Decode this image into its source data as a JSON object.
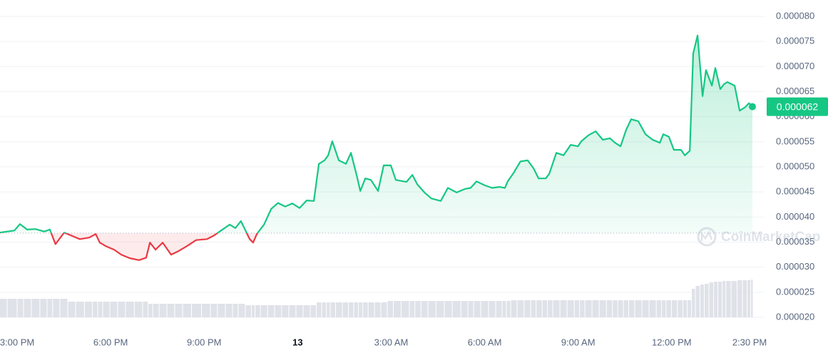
{
  "chart_data": {
    "type": "line",
    "watermark": "CoinMarketCap",
    "xlim": [
      14.45,
      38.59
    ],
    "xticks": [
      {
        "value": 15,
        "label": "3:00 PM"
      },
      {
        "value": 18,
        "label": "6:00 PM"
      },
      {
        "value": 21,
        "label": "9:00 PM"
      },
      {
        "value": 24,
        "label": "13"
      },
      {
        "value": 27,
        "label": "3:00 AM"
      },
      {
        "value": 30,
        "label": "6:00 AM"
      },
      {
        "value": 33,
        "label": "9:00 AM"
      },
      {
        "value": 36,
        "label": "12:00 PM"
      },
      {
        "value": 38.5,
        "label": "2:30 PM"
      }
    ],
    "ylim": [
      2e-05,
      8e-05
    ],
    "yticks": [
      {
        "value": 2e-05,
        "label": "0.000020"
      },
      {
        "value": 2.5e-05,
        "label": "0.000025"
      },
      {
        "value": 3e-05,
        "label": "0.000030"
      },
      {
        "value": 3.5e-05,
        "label": "0.000035"
      },
      {
        "value": 4e-05,
        "label": "0.000040"
      },
      {
        "value": 4.5e-05,
        "label": "0.000045"
      },
      {
        "value": 5e-05,
        "label": "0.000050"
      },
      {
        "value": 5.5e-05,
        "label": "0.000055"
      },
      {
        "value": 6e-05,
        "label": "0.000060"
      },
      {
        "value": 6.5e-05,
        "label": "0.000065"
      },
      {
        "value": 7e-05,
        "label": "0.000070"
      },
      {
        "value": 7.5e-05,
        "label": "0.000075"
      },
      {
        "value": 8e-05,
        "label": "0.000080"
      }
    ],
    "grid": true,
    "baseline": 3.68e-05,
    "up_color": "#16c784",
    "down_color": "#ea3943",
    "last_price": {
      "value": 6.2e-05,
      "label": "0.000062"
    },
    "x": [
      14.45,
      14.91,
      15.09,
      15.32,
      15.59,
      15.87,
      16.05,
      16.23,
      16.51,
      16.74,
      17.01,
      17.31,
      17.52,
      17.65,
      17.84,
      18.11,
      18.34,
      18.61,
      18.91,
      19.14,
      19.26,
      19.44,
      19.67,
      19.94,
      20.17,
      20.45,
      20.74,
      21.09,
      21.31,
      21.54,
      21.82,
      22.0,
      22.18,
      22.46,
      22.57,
      22.69,
      22.92,
      23.15,
      23.37,
      23.6,
      23.83,
      24.06,
      24.29,
      24.52,
      24.68,
      24.86,
      24.98,
      25.11,
      25.32,
      25.55,
      25.71,
      25.89,
      26.01,
      26.17,
      26.35,
      26.58,
      26.76,
      26.99,
      27.15,
      27.49,
      27.68,
      27.84,
      28.07,
      28.29,
      28.59,
      28.82,
      29.1,
      29.37,
      29.55,
      29.74,
      30.01,
      30.24,
      30.47,
      30.65,
      30.74,
      30.93,
      31.15,
      31.38,
      31.57,
      31.73,
      31.96,
      32.07,
      32.3,
      32.53,
      32.76,
      32.99,
      33.1,
      33.33,
      33.56,
      33.79,
      34.02,
      34.18,
      34.36,
      34.54,
      34.7,
      34.93,
      35.16,
      35.39,
      35.62,
      35.73,
      35.91,
      36.07,
      36.3,
      36.42,
      36.58,
      36.69,
      36.83,
      36.99,
      37.1,
      37.29,
      37.4,
      37.56,
      37.68,
      37.79,
      38.02,
      38.18,
      38.36,
      38.48,
      38.59
    ],
    "values": [
      3.69e-05,
      3.73e-05,
      3.86e-05,
      3.75e-05,
      3.76e-05,
      3.71e-05,
      3.75e-05,
      3.46e-05,
      3.69e-05,
      3.63e-05,
      3.56e-05,
      3.59e-05,
      3.66e-05,
      3.49e-05,
      3.42e-05,
      3.35e-05,
      3.25e-05,
      3.18e-05,
      3.14e-05,
      3.19e-05,
      3.49e-05,
      3.35e-05,
      3.49e-05,
      3.25e-05,
      3.32e-05,
      3.42e-05,
      3.54e-05,
      3.56e-05,
      3.63e-05,
      3.73e-05,
      3.85e-05,
      3.78e-05,
      3.92e-05,
      3.56e-05,
      3.49e-05,
      3.66e-05,
      3.85e-05,
      4.16e-05,
      4.28e-05,
      4.21e-05,
      4.27e-05,
      4.18e-05,
      4.33e-05,
      4.32e-05,
      5.06e-05,
      5.13e-05,
      5.23e-05,
      5.51e-05,
      5.13e-05,
      5.06e-05,
      5.28e-05,
      4.84e-05,
      4.52e-05,
      4.77e-05,
      4.74e-05,
      4.52e-05,
      5.03e-05,
      5.03e-05,
      4.74e-05,
      4.7e-05,
      4.84e-05,
      4.65e-05,
      4.49e-05,
      4.37e-05,
      4.32e-05,
      4.58e-05,
      4.49e-05,
      4.56e-05,
      4.58e-05,
      4.71e-05,
      4.63e-05,
      4.58e-05,
      4.6e-05,
      4.58e-05,
      4.71e-05,
      4.88e-05,
      5.11e-05,
      5.13e-05,
      4.97e-05,
      4.77e-05,
      4.77e-05,
      4.86e-05,
      5.28e-05,
      5.23e-05,
      5.44e-05,
      5.41e-05,
      5.51e-05,
      5.63e-05,
      5.71e-05,
      5.54e-05,
      5.57e-05,
      5.48e-05,
      5.41e-05,
      5.74e-05,
      5.95e-05,
      5.91e-05,
      5.65e-05,
      5.54e-05,
      5.48e-05,
      5.65e-05,
      5.6e-05,
      5.34e-05,
      5.34e-05,
      5.23e-05,
      5.32e-05,
      7.26e-05,
      7.62e-05,
      6.41e-05,
      6.93e-05,
      6.62e-05,
      6.97e-05,
      6.55e-05,
      6.65e-05,
      6.69e-05,
      6.62e-05,
      6.12e-05,
      6.19e-05,
      6.27e-05,
      6.2e-05
    ],
    "volume": {
      "color": "#dfe2e8",
      "vlim": [
        0,
        60
      ],
      "values": [
        26,
        26,
        26,
        26,
        26,
        26,
        26,
        26,
        26,
        22,
        22,
        22,
        22,
        22,
        22,
        22,
        22,
        22,
        22,
        22,
        19,
        19,
        19,
        19,
        19,
        19,
        19,
        19,
        19,
        19,
        19,
        19,
        19,
        17,
        17,
        17,
        17,
        17,
        17,
        17,
        17,
        17,
        17,
        17,
        21,
        21,
        21,
        21,
        21,
        21,
        21,
        21,
        21,
        21,
        21,
        21,
        21,
        23,
        23,
        23,
        23,
        23,
        23,
        23,
        23,
        23,
        23,
        23,
        23,
        23,
        23,
        23,
        23,
        23,
        23,
        24,
        24,
        24,
        24,
        24,
        24,
        24,
        24,
        24,
        24,
        24,
        24,
        24,
        24,
        24,
        24,
        24,
        24,
        24,
        24,
        24,
        24,
        24,
        24,
        24,
        24,
        24,
        24,
        24,
        24,
        40,
        44,
        46,
        47,
        49,
        50,
        50,
        51,
        51,
        51,
        52,
        52,
        52,
        53
      ]
    }
  }
}
